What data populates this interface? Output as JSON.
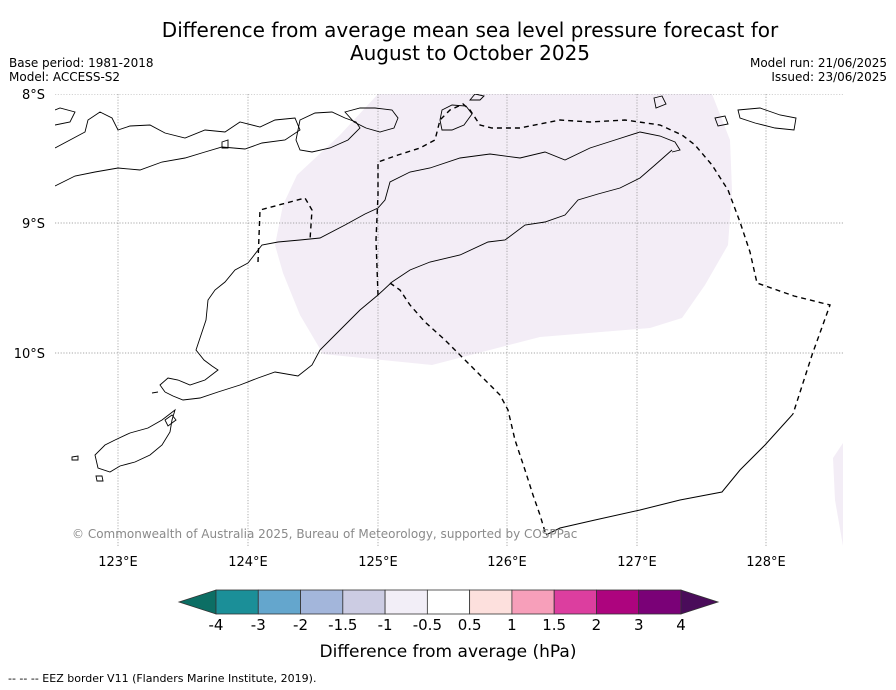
{
  "title": {
    "line1": "Difference from average mean sea level pressure forecast for",
    "line2": "August to October 2025"
  },
  "meta_left": {
    "base_period": "Base period: 1981-2018",
    "model": "Model: ACCESS-S2"
  },
  "meta_right": {
    "model_run": "Model run: 21/06/2025",
    "issued": "Issued: 23/06/2025"
  },
  "map": {
    "lat_labels": [
      "8°S",
      "9°S",
      "10°S"
    ],
    "lon_labels": [
      "123°E",
      "124°E",
      "125°E",
      "126°E",
      "127°E",
      "128°E"
    ],
    "copyright": "© Commonwealth of Australia 2025, Bureau of Meteorology, supported by COSPPac",
    "anomaly_region_color": "#f3edf6",
    "eez_border_style": "dashed"
  },
  "colorbar": {
    "label": "Difference from average (hPa)",
    "ticks": [
      "-4",
      "-3",
      "-2",
      "-1.5",
      "-1",
      "-0.5",
      "0.5",
      "1",
      "1.5",
      "2",
      "3",
      "4"
    ],
    "colors": [
      "#0c6e64",
      "#1b8f98",
      "#64a6cd",
      "#a3b6db",
      "#cccce3",
      "#f2eef7",
      "#ffffff",
      "#fde0dd",
      "#f79fba",
      "#dc3e9f",
      "#ad047e",
      "#7a0177",
      "#4a0c5a"
    ]
  },
  "footer": "--  --  -- EEZ border V11 (Flanders Marine Institute, 2019)."
}
